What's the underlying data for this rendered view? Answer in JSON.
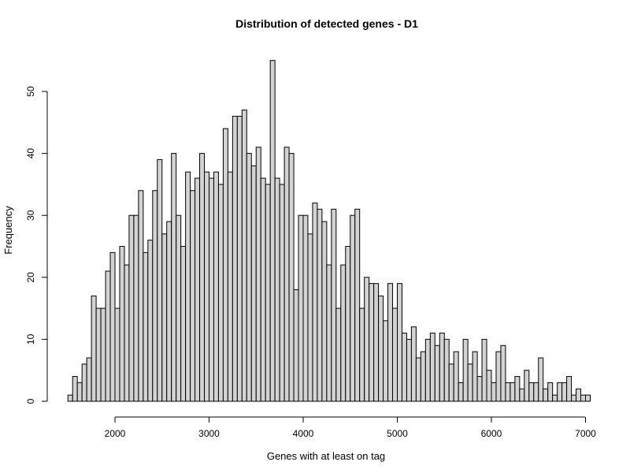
{
  "chart_data": {
    "type": "bar",
    "title": "Distribution of detected genes - D1",
    "xlabel": "Genes with at least on tag",
    "ylabel": "Frequency",
    "bin_start": 1500,
    "bin_width": 50,
    "values": [
      1,
      4,
      3,
      6,
      7,
      17,
      15,
      15,
      21,
      24,
      15,
      25,
      22,
      30,
      30,
      34,
      24,
      26,
      34,
      39,
      27,
      29,
      40,
      30,
      25,
      37,
      34,
      36,
      40,
      37,
      36,
      37,
      35,
      44,
      37,
      46,
      46,
      47,
      40,
      38,
      41,
      36,
      35,
      55,
      36,
      35,
      41,
      40,
      18,
      30,
      30,
      27,
      32,
      31,
      29,
      22,
      31,
      15,
      22,
      25,
      30,
      31,
      15,
      20,
      19,
      19,
      17,
      13,
      19,
      15,
      19,
      11,
      10,
      12,
      7,
      8,
      10,
      11,
      9,
      11,
      10,
      6,
      8,
      3,
      10,
      6,
      8,
      4,
      10,
      5,
      3,
      8,
      9,
      3,
      3,
      4,
      2,
      5,
      3,
      3,
      7,
      2,
      3,
      1,
      3,
      3,
      4,
      1,
      2,
      1,
      1
    ],
    "xlim": [
      1500,
      7000
    ],
    "ylim": [
      0,
      55
    ],
    "x_ticks": [
      2000,
      3000,
      4000,
      5000,
      6000,
      7000
    ],
    "y_ticks": [
      0,
      10,
      20,
      30,
      40,
      50
    ],
    "grid": false,
    "bar_color": "#d3d3d3",
    "edge_color": "#000000"
  }
}
